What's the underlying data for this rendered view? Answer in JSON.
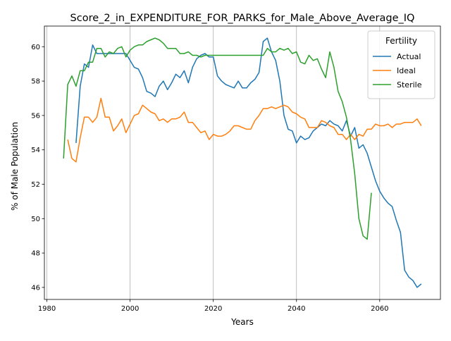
{
  "chart_data": {
    "type": "line",
    "title": "Score_2_in_EXPENDITURE_FOR_PARKS_for_Male_Above_Average_IQ",
    "xlabel": "Years",
    "ylabel": "% of Male Population",
    "xlim": [
      1979.4,
      2074.6
    ],
    "ylim": [
      45.3,
      61.2
    ],
    "xticks": [
      1980,
      2000,
      2020,
      2040,
      2060
    ],
    "yticks": [
      46,
      48,
      50,
      52,
      54,
      56,
      58,
      60
    ],
    "grid": "vertical",
    "legend": {
      "title": "Fertility",
      "placement": "top-right"
    },
    "series": [
      {
        "name": "Actual",
        "color": "#1f77b4",
        "x": [
          1987,
          1988,
          1989,
          1990,
          1991,
          1992,
          1993,
          1994,
          1995,
          1996,
          1997,
          1998,
          1999,
          2000,
          2001,
          2002,
          2003,
          2004,
          2005,
          2006,
          2007,
          2008,
          2009,
          2010,
          2011,
          2012,
          2013,
          2014,
          2015,
          2016,
          2017,
          2018,
          2019,
          2020,
          2021,
          2022,
          2023,
          2024,
          2025,
          2026,
          2027,
          2028,
          2029,
          2030,
          2031,
          2032,
          2033,
          2034,
          2035,
          2036,
          2037,
          2038,
          2039,
          2040,
          2041,
          2042,
          2043,
          2044,
          2045,
          2046,
          2047,
          2048,
          2049,
          2050,
          2051,
          2052,
          2053,
          2054,
          2055,
          2056,
          2057,
          2058,
          2059,
          2060,
          2061,
          2062,
          2063,
          2064,
          2065,
          2066,
          2067,
          2068,
          2069,
          2070
        ],
        "values": [
          54.4,
          57.7,
          59.0,
          58.8,
          60.1,
          59.6,
          59.6,
          59.6,
          59.6,
          59.6,
          59.6,
          59.6,
          59.6,
          59.2,
          58.8,
          58.7,
          58.2,
          57.4,
          57.3,
          57.1,
          57.7,
          58.0,
          57.5,
          57.9,
          58.4,
          58.2,
          58.6,
          57.9,
          58.8,
          59.3,
          59.5,
          59.6,
          59.4,
          59.4,
          58.3,
          58.0,
          57.8,
          57.7,
          57.6,
          58.0,
          57.6,
          57.6,
          57.9,
          58.1,
          58.5,
          60.3,
          60.5,
          59.7,
          59.2,
          58.0,
          56.0,
          55.2,
          55.1,
          54.4,
          54.8,
          54.6,
          54.7,
          55.1,
          55.3,
          55.5,
          55.4,
          55.7,
          55.5,
          55.4,
          55.1,
          55.7,
          54.8,
          55.3,
          54.1,
          54.3,
          53.8,
          53.0,
          52.2,
          51.6,
          51.2,
          50.9,
          50.7,
          49.9,
          49.2,
          47.0,
          46.6,
          46.4,
          46.0,
          46.2
        ]
      },
      {
        "name": "Ideal",
        "color": "#ff7f0e",
        "x": [
          1985,
          1986,
          1987,
          1988,
          1989,
          1990,
          1991,
          1992,
          1993,
          1994,
          1995,
          1996,
          1997,
          1998,
          1999,
          2000,
          2001,
          2002,
          2003,
          2004,
          2005,
          2006,
          2007,
          2008,
          2009,
          2010,
          2011,
          2012,
          2013,
          2014,
          2015,
          2016,
          2017,
          2018,
          2019,
          2020,
          2021,
          2022,
          2023,
          2024,
          2025,
          2026,
          2027,
          2028,
          2029,
          2030,
          2031,
          2032,
          2033,
          2034,
          2035,
          2036,
          2037,
          2038,
          2039,
          2040,
          2041,
          2042,
          2043,
          2044,
          2045,
          2046,
          2047,
          2048,
          2049,
          2050,
          2051,
          2052,
          2053,
          2054,
          2055,
          2056,
          2057,
          2058,
          2059,
          2060,
          2061,
          2062,
          2063,
          2064,
          2065,
          2066,
          2067,
          2068,
          2069,
          2070
        ],
        "values": [
          54.6,
          53.5,
          53.3,
          54.7,
          55.9,
          55.9,
          55.6,
          55.9,
          57.0,
          55.9,
          55.9,
          55.1,
          55.4,
          55.8,
          55.0,
          55.5,
          56.0,
          56.1,
          56.6,
          56.4,
          56.2,
          56.1,
          55.7,
          55.8,
          55.6,
          55.8,
          55.8,
          55.9,
          56.2,
          55.6,
          55.6,
          55.3,
          55.0,
          55.1,
          54.6,
          54.9,
          54.8,
          54.8,
          54.9,
          55.1,
          55.4,
          55.4,
          55.3,
          55.2,
          55.2,
          55.7,
          56.0,
          56.4,
          56.4,
          56.5,
          56.4,
          56.5,
          56.6,
          56.5,
          56.2,
          56.1,
          55.9,
          55.8,
          55.3,
          55.3,
          55.3,
          55.7,
          55.6,
          55.4,
          55.3,
          54.9,
          54.9,
          54.6,
          54.9,
          54.6,
          54.9,
          54.8,
          55.2,
          55.2,
          55.5,
          55.4,
          55.4,
          55.5,
          55.3,
          55.5,
          55.5,
          55.6,
          55.6,
          55.6,
          55.8,
          55.4
        ]
      },
      {
        "name": "Sterile",
        "color": "#2ca02c",
        "x": [
          1984,
          1985,
          1986,
          1987,
          1988,
          1989,
          1990,
          1991,
          1992,
          1993,
          1994,
          1995,
          1996,
          1997,
          1998,
          1999,
          2000,
          2001,
          2002,
          2003,
          2004,
          2005,
          2006,
          2007,
          2008,
          2009,
          2010,
          2011,
          2012,
          2013,
          2014,
          2015,
          2016,
          2017,
          2018,
          2019,
          2020,
          2021,
          2022,
          2023,
          2024,
          2025,
          2026,
          2027,
          2028,
          2029,
          2030,
          2031,
          2032,
          2033,
          2034,
          2035,
          2036,
          2037,
          2038,
          2039,
          2040,
          2041,
          2042,
          2043,
          2044,
          2045,
          2046,
          2047,
          2048,
          2049,
          2050,
          2051,
          2052,
          2053,
          2054,
          2055,
          2056,
          2057,
          2058
        ],
        "values": [
          53.5,
          57.8,
          58.3,
          57.7,
          58.6,
          58.6,
          59.1,
          59.1,
          59.9,
          59.9,
          59.4,
          59.7,
          59.6,
          59.9,
          60.0,
          59.4,
          59.8,
          60.0,
          60.1,
          60.1,
          60.3,
          60.4,
          60.5,
          60.4,
          60.2,
          59.9,
          59.9,
          59.9,
          59.6,
          59.6,
          59.7,
          59.5,
          59.5,
          59.4,
          59.5,
          59.5,
          59.5,
          59.5,
          59.5,
          59.5,
          59.5,
          59.5,
          59.5,
          59.5,
          59.5,
          59.5,
          59.5,
          59.5,
          59.5,
          59.9,
          59.7,
          59.7,
          59.9,
          59.8,
          59.9,
          59.6,
          59.7,
          59.1,
          59.0,
          59.5,
          59.2,
          59.3,
          58.7,
          58.2,
          59.7,
          58.8,
          57.4,
          56.8,
          55.9,
          54.6,
          52.6,
          50.0,
          49.0,
          48.8,
          51.5
        ]
      }
    ]
  }
}
